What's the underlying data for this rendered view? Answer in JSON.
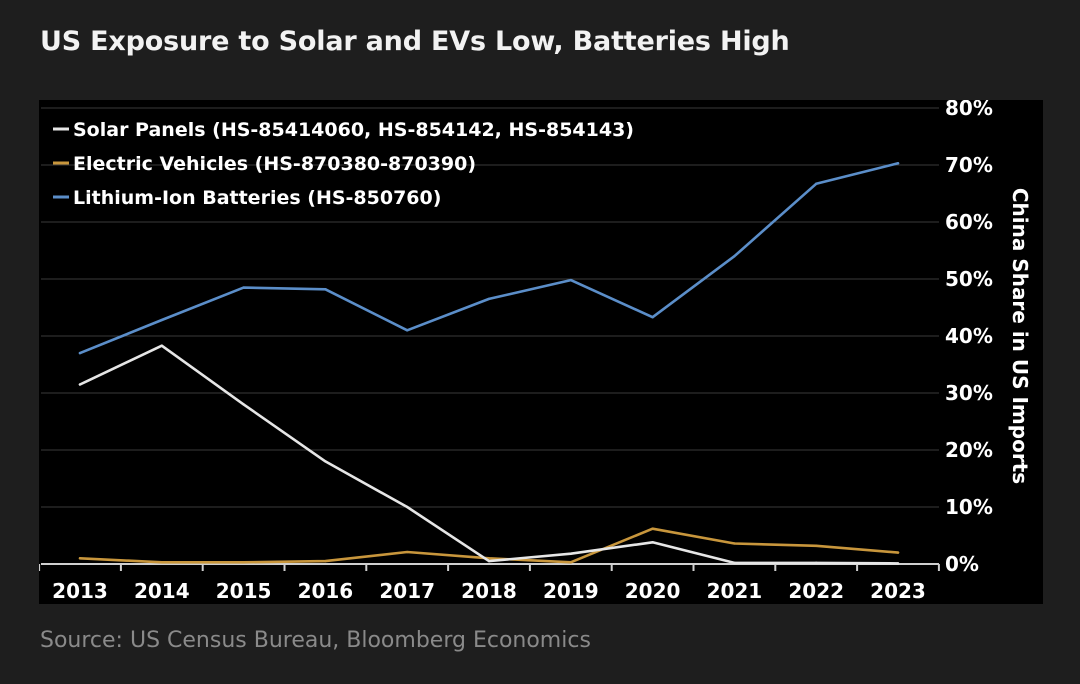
{
  "header": {
    "title": "US Exposure to Solar and EVs Low, Batteries High"
  },
  "footer": {
    "source": "Source: US Census Bureau, Bloomberg Economics"
  },
  "chart_data": {
    "type": "line",
    "title": "US Exposure to Solar and EVs Low, Batteries High",
    "xlabel": "",
    "ylabel": "China Share in US Imports",
    "x": [
      "2013",
      "2014",
      "2015",
      "2016",
      "2017",
      "2018",
      "2019",
      "2020",
      "2021",
      "2022",
      "2023"
    ],
    "ylim": [
      0,
      80
    ],
    "yticks": [
      0,
      10,
      20,
      30,
      40,
      50,
      60,
      70,
      80
    ],
    "ytick_labels": [
      "0%",
      "10%",
      "20%",
      "30%",
      "40%",
      "50%",
      "60%",
      "70%",
      "80%"
    ],
    "y_axis_side": "right",
    "grid": true,
    "legend_position": "top-left",
    "series": [
      {
        "name": "Solar Panels (HS-85414060, HS-854142, HS-854143)",
        "color": "#e6e6e6",
        "values": [
          31.5,
          38.3,
          28.0,
          18.0,
          10.0,
          0.5,
          1.8,
          3.8,
          0.2,
          0.2,
          0.1
        ]
      },
      {
        "name": "Electric Vehicles (HS-870380-870390)",
        "color": "#c8963c",
        "values": [
          1.0,
          0.3,
          0.3,
          0.5,
          2.1,
          1.0,
          0.3,
          6.2,
          3.6,
          3.2,
          2.0
        ]
      },
      {
        "name": "Lithium-Ion Batteries (HS-850760)",
        "color": "#5b8ec9",
        "values": [
          37.0,
          42.8,
          48.5,
          48.2,
          41.0,
          46.5,
          49.8,
          43.3,
          54.0,
          66.7,
          70.3
        ]
      }
    ]
  }
}
